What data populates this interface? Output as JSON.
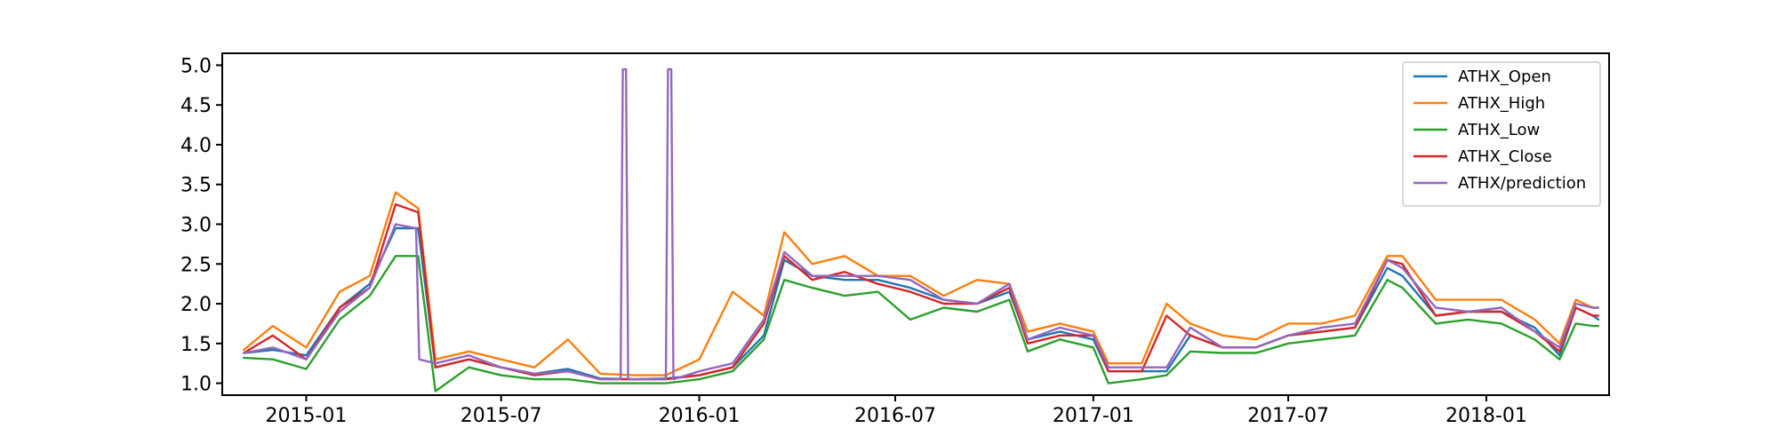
{
  "chart_data": {
    "type": "line",
    "title": "",
    "xlabel": "",
    "ylabel": "",
    "x_range": [
      "2014-10-15",
      "2018-04-25"
    ],
    "ylim": [
      0.85,
      5.15
    ],
    "x_ticks": [
      {
        "date": "2015-01-01",
        "label": "2015-01"
      },
      {
        "date": "2015-07-01",
        "label": "2015-07"
      },
      {
        "date": "2016-01-01",
        "label": "2016-01"
      },
      {
        "date": "2016-07-01",
        "label": "2016-07"
      },
      {
        "date": "2017-01-01",
        "label": "2017-01"
      },
      {
        "date": "2017-07-01",
        "label": "2017-07"
      },
      {
        "date": "2018-01-01",
        "label": "2018-01"
      }
    ],
    "y_ticks": [
      {
        "value": 1.0,
        "label": "1.0"
      },
      {
        "value": 1.5,
        "label": "1.5"
      },
      {
        "value": 2.0,
        "label": "2.0"
      },
      {
        "value": 2.5,
        "label": "2.5"
      },
      {
        "value": 3.0,
        "label": "3.0"
      },
      {
        "value": 3.5,
        "label": "3.5"
      },
      {
        "value": 4.0,
        "label": "4.0"
      },
      {
        "value": 4.5,
        "label": "4.5"
      },
      {
        "value": 5.0,
        "label": "5.0"
      }
    ],
    "grid": false,
    "legend_position": "top-right",
    "series": [
      {
        "name": "ATHX_Open",
        "color": "#1f77b4",
        "x": [
          "2014-11-04",
          "2014-12-01",
          "2015-01-01",
          "2015-02-01",
          "2015-03-01",
          "2015-03-25",
          "2015-04-15",
          "2015-05-01",
          "2015-06-01",
          "2015-07-01",
          "2015-08-01",
          "2015-09-01",
          "2015-10-01",
          "2015-11-01",
          "2015-12-01",
          "2016-01-01",
          "2016-02-01",
          "2016-03-01",
          "2016-03-20",
          "2016-04-15",
          "2016-05-15",
          "2016-06-15",
          "2016-07-15",
          "2016-08-15",
          "2016-09-15",
          "2016-10-15",
          "2016-11-01",
          "2016-12-01",
          "2017-01-01",
          "2017-01-15",
          "2017-02-15",
          "2017-03-10",
          "2017-04-01",
          "2017-05-01",
          "2017-06-01",
          "2017-07-01",
          "2017-08-01",
          "2017-09-01",
          "2017-10-01",
          "2017-10-15",
          "2017-11-15",
          "2017-12-15",
          "2018-01-15",
          "2018-02-15",
          "2018-03-10",
          "2018-03-25",
          "2018-04-10",
          "2018-04-15"
        ],
        "y": [
          1.38,
          1.42,
          1.35,
          1.95,
          2.25,
          2.95,
          2.95,
          1.2,
          1.3,
          1.2,
          1.12,
          1.18,
          1.06,
          1.05,
          1.06,
          1.1,
          1.2,
          1.6,
          2.55,
          2.35,
          2.3,
          2.3,
          2.2,
          2.05,
          2.0,
          2.15,
          1.55,
          1.65,
          1.55,
          1.15,
          1.15,
          1.15,
          1.6,
          1.45,
          1.45,
          1.6,
          1.65,
          1.7,
          2.45,
          2.35,
          1.85,
          1.9,
          1.9,
          1.7,
          1.35,
          1.95,
          1.85,
          1.8
        ]
      },
      {
        "name": "ATHX_High",
        "color": "#ff7f0e",
        "x": [
          "2014-11-04",
          "2014-12-01",
          "2015-01-01",
          "2015-02-01",
          "2015-03-01",
          "2015-03-25",
          "2015-04-15",
          "2015-05-01",
          "2015-06-01",
          "2015-07-01",
          "2015-08-01",
          "2015-09-01",
          "2015-10-01",
          "2015-11-01",
          "2015-12-01",
          "2016-01-01",
          "2016-02-01",
          "2016-03-01",
          "2016-03-20",
          "2016-04-15",
          "2016-05-15",
          "2016-06-15",
          "2016-07-15",
          "2016-08-15",
          "2016-09-15",
          "2016-10-15",
          "2016-11-01",
          "2016-12-01",
          "2017-01-01",
          "2017-01-15",
          "2017-02-15",
          "2017-03-10",
          "2017-04-01",
          "2017-05-01",
          "2017-06-01",
          "2017-07-01",
          "2017-08-01",
          "2017-09-01",
          "2017-10-01",
          "2017-10-15",
          "2017-11-15",
          "2017-12-15",
          "2018-01-15",
          "2018-02-15",
          "2018-03-10",
          "2018-03-25",
          "2018-04-10",
          "2018-04-15"
        ],
        "y": [
          1.42,
          1.72,
          1.45,
          2.15,
          2.35,
          3.4,
          3.2,
          1.3,
          1.4,
          1.3,
          1.2,
          1.55,
          1.12,
          1.1,
          1.1,
          1.3,
          2.15,
          1.85,
          2.9,
          2.5,
          2.6,
          2.35,
          2.35,
          2.1,
          2.3,
          2.25,
          1.65,
          1.75,
          1.65,
          1.25,
          1.25,
          2.0,
          1.75,
          1.6,
          1.55,
          1.75,
          1.75,
          1.85,
          2.6,
          2.6,
          2.05,
          2.05,
          2.05,
          1.8,
          1.5,
          2.05,
          1.95,
          1.95
        ]
      },
      {
        "name": "ATHX_Low",
        "color": "#2ca02c",
        "x": [
          "2014-11-04",
          "2014-12-01",
          "2015-01-01",
          "2015-02-01",
          "2015-03-01",
          "2015-03-25",
          "2015-04-15",
          "2015-05-01",
          "2015-06-01",
          "2015-07-01",
          "2015-08-01",
          "2015-09-01",
          "2015-10-01",
          "2015-11-01",
          "2015-12-01",
          "2016-01-01",
          "2016-02-01",
          "2016-03-01",
          "2016-03-20",
          "2016-04-15",
          "2016-05-15",
          "2016-06-15",
          "2016-07-15",
          "2016-08-15",
          "2016-09-15",
          "2016-10-15",
          "2016-11-01",
          "2016-12-01",
          "2017-01-01",
          "2017-01-15",
          "2017-02-15",
          "2017-03-10",
          "2017-04-01",
          "2017-05-01",
          "2017-06-01",
          "2017-07-01",
          "2017-08-01",
          "2017-09-01",
          "2017-10-01",
          "2017-10-15",
          "2017-11-15",
          "2017-12-15",
          "2018-01-15",
          "2018-02-15",
          "2018-03-10",
          "2018-03-25",
          "2018-04-10",
          "2018-04-15"
        ],
        "y": [
          1.32,
          1.3,
          1.18,
          1.8,
          2.1,
          2.6,
          2.6,
          0.9,
          1.2,
          1.1,
          1.05,
          1.05,
          1.0,
          1.0,
          1.0,
          1.05,
          1.15,
          1.55,
          2.3,
          2.2,
          2.1,
          2.15,
          1.8,
          1.95,
          1.9,
          2.05,
          1.4,
          1.55,
          1.45,
          1.0,
          1.05,
          1.1,
          1.4,
          1.38,
          1.38,
          1.5,
          1.55,
          1.6,
          2.3,
          2.2,
          1.75,
          1.8,
          1.75,
          1.55,
          1.3,
          1.75,
          1.72,
          1.72
        ]
      },
      {
        "name": "ATHX_Close",
        "color": "#d62728",
        "x": [
          "2014-11-04",
          "2014-12-01",
          "2015-01-01",
          "2015-02-01",
          "2015-03-01",
          "2015-03-25",
          "2015-04-15",
          "2015-05-01",
          "2015-06-01",
          "2015-07-01",
          "2015-08-01",
          "2015-09-01",
          "2015-10-01",
          "2015-11-01",
          "2015-12-01",
          "2016-01-01",
          "2016-02-01",
          "2016-03-01",
          "2016-03-20",
          "2016-04-15",
          "2016-05-15",
          "2016-06-15",
          "2016-07-15",
          "2016-08-15",
          "2016-09-15",
          "2016-10-15",
          "2016-11-01",
          "2016-12-01",
          "2017-01-01",
          "2017-01-15",
          "2017-02-15",
          "2017-03-10",
          "2017-04-01",
          "2017-05-01",
          "2017-06-01",
          "2017-07-01",
          "2017-08-01",
          "2017-09-01",
          "2017-10-01",
          "2017-10-15",
          "2017-11-15",
          "2017-12-15",
          "2018-01-15",
          "2018-02-15",
          "2018-03-10",
          "2018-03-25",
          "2018-04-10",
          "2018-04-15"
        ],
        "y": [
          1.38,
          1.6,
          1.3,
          1.95,
          2.2,
          3.25,
          3.15,
          1.2,
          1.3,
          1.2,
          1.1,
          1.15,
          1.05,
          1.05,
          1.05,
          1.1,
          1.2,
          1.75,
          2.6,
          2.3,
          2.4,
          2.25,
          2.15,
          2.0,
          2.0,
          2.2,
          1.5,
          1.6,
          1.6,
          1.15,
          1.15,
          1.85,
          1.6,
          1.45,
          1.45,
          1.6,
          1.65,
          1.7,
          2.55,
          2.5,
          1.85,
          1.9,
          1.9,
          1.65,
          1.4,
          1.95,
          1.85,
          1.85
        ]
      },
      {
        "name": "ATHX/prediction",
        "color": "#9467bd",
        "x": [
          "2014-11-04",
          "2014-12-01",
          "2015-01-01",
          "2015-02-01",
          "2015-03-01",
          "2015-03-25",
          "2015-04-13",
          "2015-04-16",
          "2015-05-01",
          "2015-06-01",
          "2015-07-01",
          "2015-08-01",
          "2015-09-01",
          "2015-10-01",
          "2015-10-20",
          "2015-10-22",
          "2015-10-25",
          "2015-10-27",
          "2015-11-01",
          "2015-12-01",
          "2015-12-03",
          "2015-12-06",
          "2015-12-08",
          "2016-01-01",
          "2016-02-01",
          "2016-03-01",
          "2016-03-20",
          "2016-04-15",
          "2016-05-15",
          "2016-06-15",
          "2016-07-15",
          "2016-08-15",
          "2016-09-15",
          "2016-10-15",
          "2016-11-01",
          "2016-12-01",
          "2017-01-01",
          "2017-01-15",
          "2017-02-15",
          "2017-03-10",
          "2017-04-01",
          "2017-05-01",
          "2017-06-01",
          "2017-07-01",
          "2017-08-01",
          "2017-09-01",
          "2017-10-01",
          "2017-10-15",
          "2017-11-15",
          "2017-12-15",
          "2018-01-15",
          "2018-02-15",
          "2018-03-10",
          "2018-03-25",
          "2018-04-10",
          "2018-04-15"
        ],
        "y": [
          1.38,
          1.45,
          1.3,
          1.9,
          2.2,
          3.0,
          2.95,
          1.3,
          1.25,
          1.35,
          1.2,
          1.12,
          1.15,
          1.05,
          1.05,
          4.95,
          4.95,
          1.05,
          1.05,
          1.05,
          4.95,
          4.95,
          1.05,
          1.15,
          1.25,
          1.8,
          2.65,
          2.35,
          2.35,
          2.35,
          2.3,
          2.05,
          2.0,
          2.25,
          1.55,
          1.7,
          1.6,
          1.2,
          1.2,
          1.2,
          1.7,
          1.45,
          1.45,
          1.6,
          1.7,
          1.75,
          2.55,
          2.45,
          1.95,
          1.9,
          1.95,
          1.65,
          1.45,
          2.0,
          1.95,
          1.95
        ]
      }
    ]
  }
}
